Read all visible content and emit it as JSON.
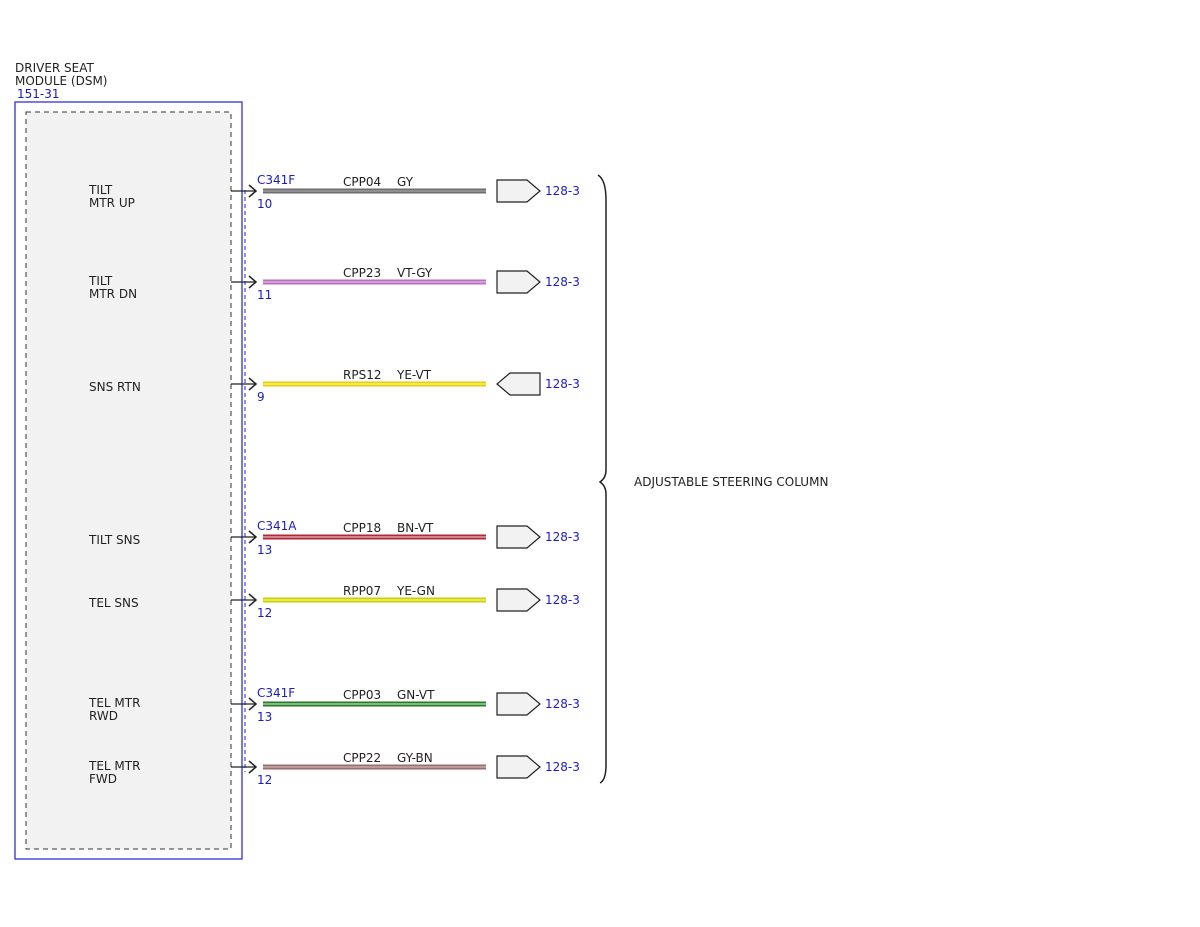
{
  "module": {
    "title": [
      "DRIVER SEAT",
      "MODULE (DSM)"
    ],
    "ref": "151-31"
  },
  "circuits": [
    {
      "label": [
        "TILT",
        "MTR UP"
      ],
      "connector": "C341F",
      "pin": "10",
      "circuit": "CPP04",
      "wire_color": "GY",
      "colors": [
        "#6e6e6e",
        "#9a9a9a"
      ],
      "direction": "out",
      "ref": "128-3"
    },
    {
      "label": [
        "TILT",
        "MTR DN"
      ],
      "pin": "11",
      "circuit": "CPP23",
      "wire_color": "VT-GY",
      "colors": [
        "#b870c0",
        "#d8b0dc"
      ],
      "direction": "out",
      "ref": "128-3"
    },
    {
      "label": [
        "SNS RTN"
      ],
      "pin": "9",
      "circuit": "RPS12",
      "wire_color": "YE-VT",
      "colors": [
        "#e8d000",
        "#f4ec90"
      ],
      "direction": "in",
      "ref": "128-3"
    },
    {
      "label": [
        "TILT SNS"
      ],
      "connector": "C341A",
      "pin": "13",
      "circuit": "CPP18",
      "wire_color": "BN-VT",
      "colors": [
        "#b02838",
        "#e0a0a8"
      ],
      "direction": "out",
      "ref": "128-3"
    },
    {
      "label": [
        "TEL SNS"
      ],
      "pin": "12",
      "circuit": "RPP07",
      "wire_color": "YE-GN",
      "colors": [
        "#c8d000",
        "#eef080"
      ],
      "direction": "out",
      "ref": "128-3"
    },
    {
      "label": [
        "TEL MTR",
        "RWD"
      ],
      "connector": "C341F",
      "pin": "13",
      "circuit": "CPP03",
      "wire_color": "GN-VT",
      "colors": [
        "#2a7a2a",
        "#a0d0a0"
      ],
      "direction": "out",
      "ref": "128-3"
    },
    {
      "label": [
        "TEL MTR",
        "FWD"
      ],
      "pin": "12",
      "circuit": "CPP22",
      "wire_color": "GY-BN",
      "colors": [
        "#9a6e70",
        "#c8a8a8"
      ],
      "direction": "out",
      "ref": "128-3"
    }
  ],
  "component": "ADJUSTABLE STEERING COLUMN"
}
